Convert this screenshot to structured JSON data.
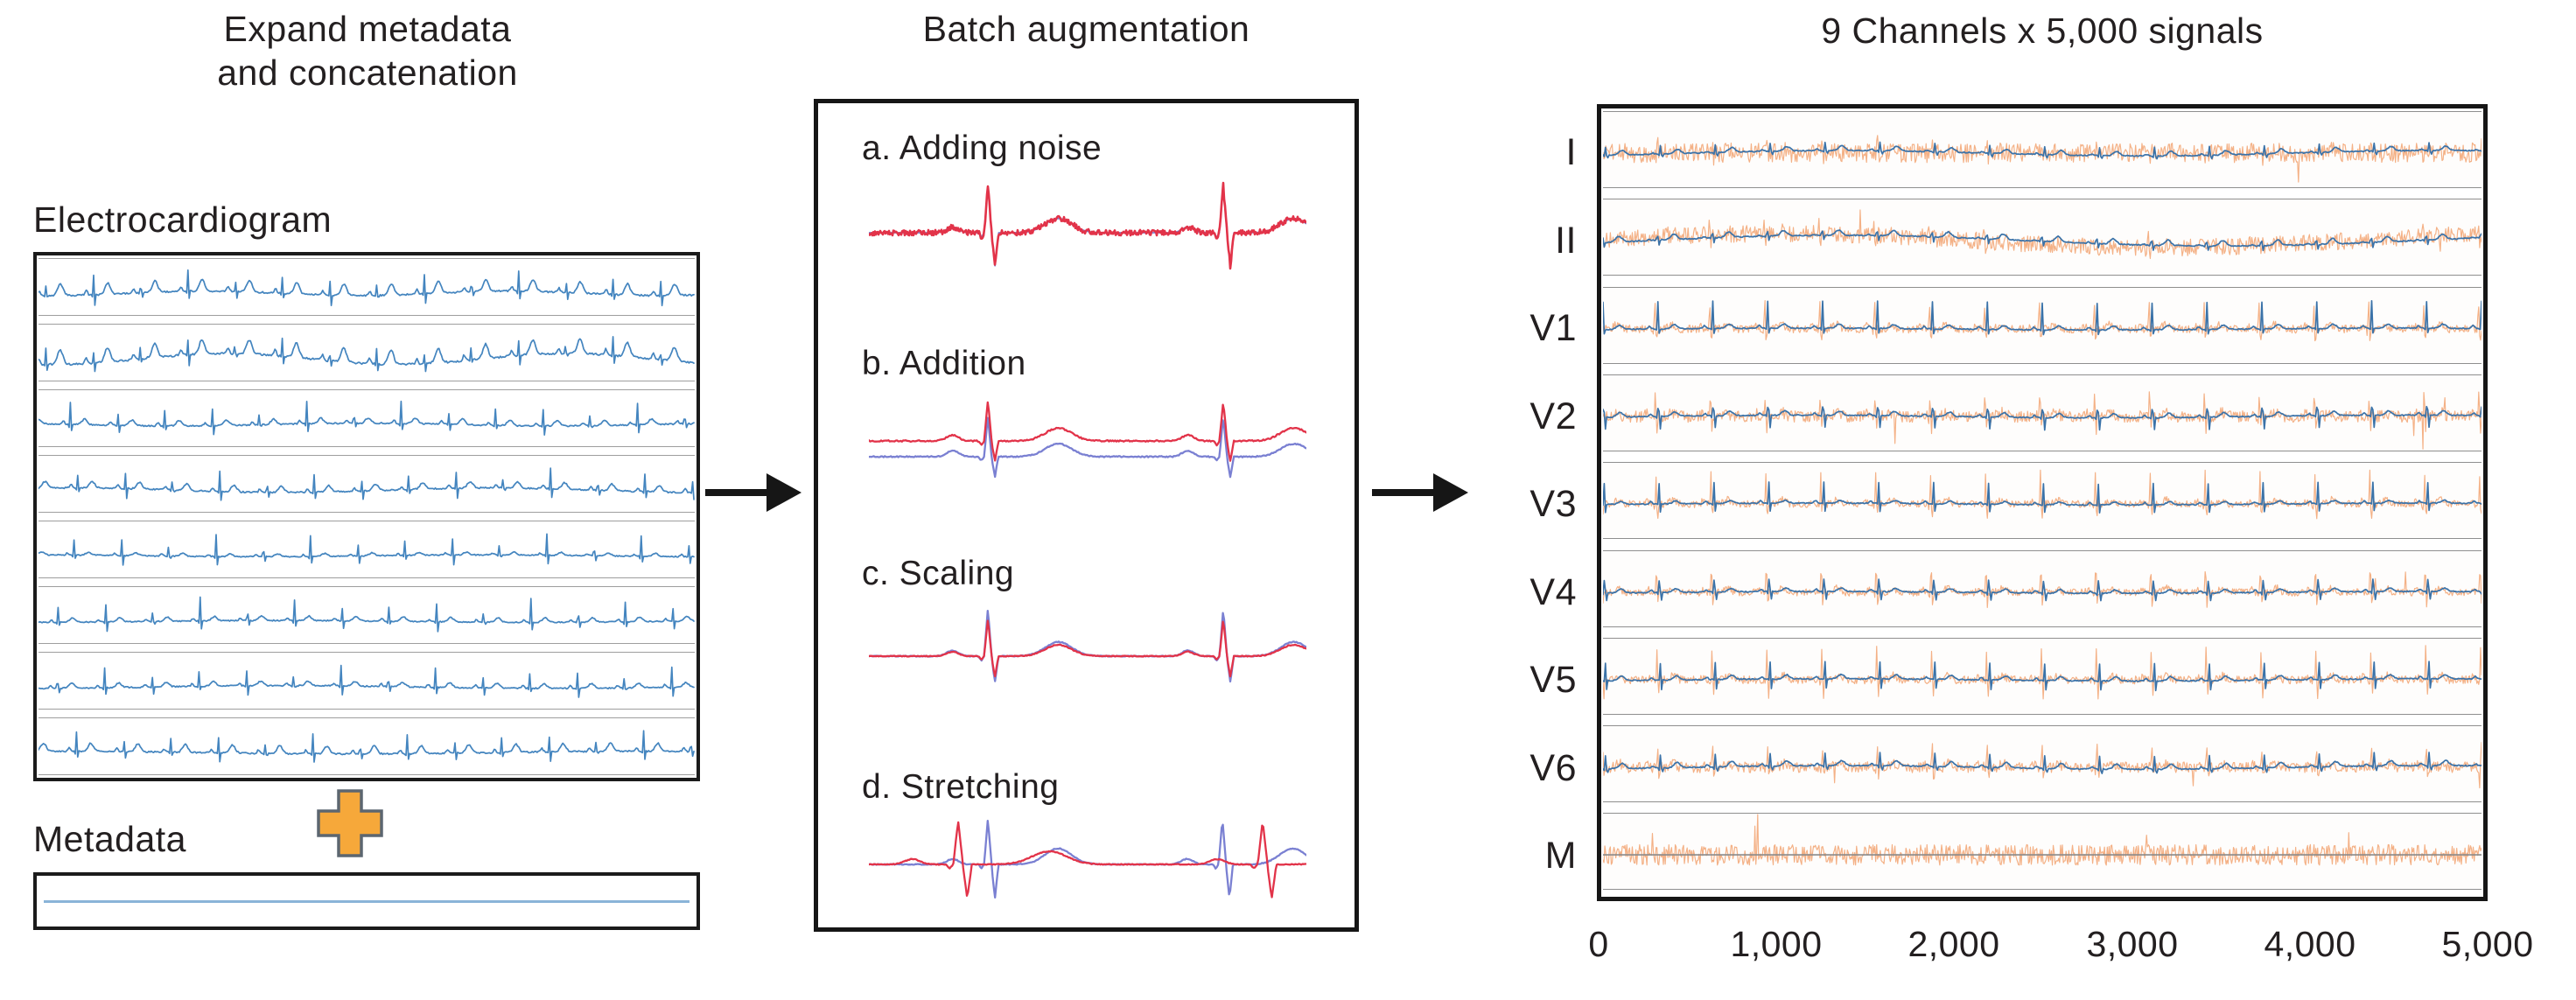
{
  "left_panel": {
    "title_line1": "Expand metadata",
    "title_line2": "and concatenation",
    "ecg_label": "Electrocardiogram",
    "metadata_label": "Metadata",
    "ecg_rows": 8,
    "colors": {
      "trace": "#4485bf",
      "plus_fill": "#f6a83a",
      "plus_border": "#5c6670",
      "metadata_line": "#8ab4d8"
    }
  },
  "middle_panel": {
    "title": "Batch augmentation",
    "augmentations": [
      {
        "label": "a. Adding noise"
      },
      {
        "label": "b. Addition"
      },
      {
        "label": "c. Scaling"
      },
      {
        "label": "d. Stretching"
      }
    ],
    "colors": {
      "red": "#e23349",
      "blue": "#7a80d2"
    }
  },
  "right_panel": {
    "title": "9 Channels x 5,000 signals",
    "channels": [
      "I",
      "II",
      "V1",
      "V2",
      "V3",
      "V4",
      "V5",
      "V6",
      "M"
    ],
    "x_ticks": [
      "0",
      "1,000",
      "2,000",
      "3,000",
      "4,000",
      "5,000"
    ],
    "colors": {
      "orange": "#f3ad7f",
      "blue": "#3a72a8",
      "baseline": "#8a8a8a"
    }
  }
}
